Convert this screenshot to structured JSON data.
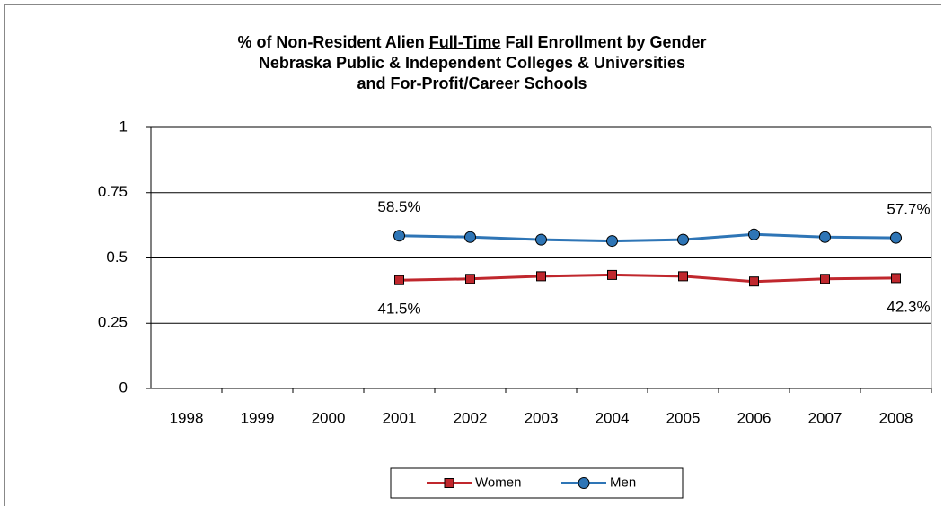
{
  "chart_data": {
    "type": "line",
    "title": [
      [
        "% of Non-Resident Alien",
        "Full-Time",
        "Fall Enrollment by Gender"
      ],
      "Nebraska Public & Independent Colleges & Universities",
      "and For-Profit/Career Schools"
    ],
    "categories": [
      "1998",
      "1999",
      "2000",
      "2001",
      "2002",
      "2003",
      "2004",
      "2005",
      "2006",
      "2007",
      "2008"
    ],
    "series": [
      {
        "name": "Women",
        "color": "#c0272d",
        "marker": "square",
        "values": [
          null,
          null,
          null,
          0.415,
          0.42,
          0.43,
          0.435,
          0.43,
          0.41,
          0.42,
          0.423
        ],
        "value_labels": [
          null,
          null,
          null,
          "41.5%",
          null,
          null,
          null,
          null,
          null,
          null,
          "42.3%"
        ]
      },
      {
        "name": "Men",
        "color": "#2e75b6",
        "marker": "circle",
        "values": [
          null,
          null,
          null,
          0.585,
          0.58,
          0.57,
          0.565,
          0.57,
          0.59,
          0.58,
          0.577
        ],
        "value_labels": [
          null,
          null,
          null,
          "58.5%",
          null,
          null,
          null,
          null,
          null,
          null,
          "57.7%"
        ]
      }
    ],
    "ylim": [
      0,
      1
    ],
    "yticks": [
      0,
      0.25,
      0.5,
      0.75,
      1
    ],
    "grid": true,
    "legend": "bottom"
  }
}
